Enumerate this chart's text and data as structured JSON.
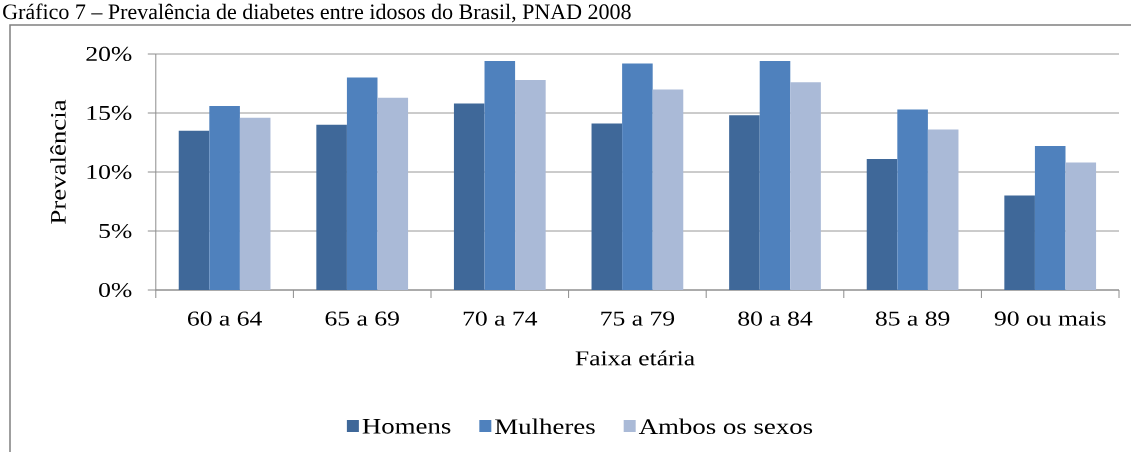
{
  "chart_data": {
    "type": "bar",
    "title": "Gráfico 7 – Prevalência de diabetes entre idosos do Brasil, PNAD 2008",
    "xlabel": "Faixa etária",
    "ylabel": "Prevalência",
    "categories": [
      "60 a 64",
      "65 a 69",
      "70 a 74",
      "75 a 79",
      "80 a 84",
      "85 a 89",
      "90 ou mais"
    ],
    "series": [
      {
        "name": "Homens",
        "color": "#3f6899",
        "values": [
          13.5,
          14.0,
          15.8,
          14.1,
          14.8,
          11.1,
          8.0
        ]
      },
      {
        "name": "Mulheres",
        "color": "#4f81bd",
        "values": [
          15.6,
          18.0,
          19.4,
          19.2,
          19.4,
          15.3,
          12.2
        ]
      },
      {
        "name": "Ambos os sexos",
        "color": "#aabad7",
        "values": [
          14.6,
          16.3,
          17.8,
          17.0,
          17.6,
          13.6,
          10.8
        ]
      }
    ],
    "ylim": [
      0,
      20
    ],
    "yticks": [
      {
        "value": 0,
        "label": "0%"
      },
      {
        "value": 5,
        "label": "5%"
      },
      {
        "value": 10,
        "label": "10%"
      },
      {
        "value": 15,
        "label": "15%"
      },
      {
        "value": 20,
        "label": "20%"
      }
    ],
    "grid": "y",
    "legend": "bottom"
  }
}
